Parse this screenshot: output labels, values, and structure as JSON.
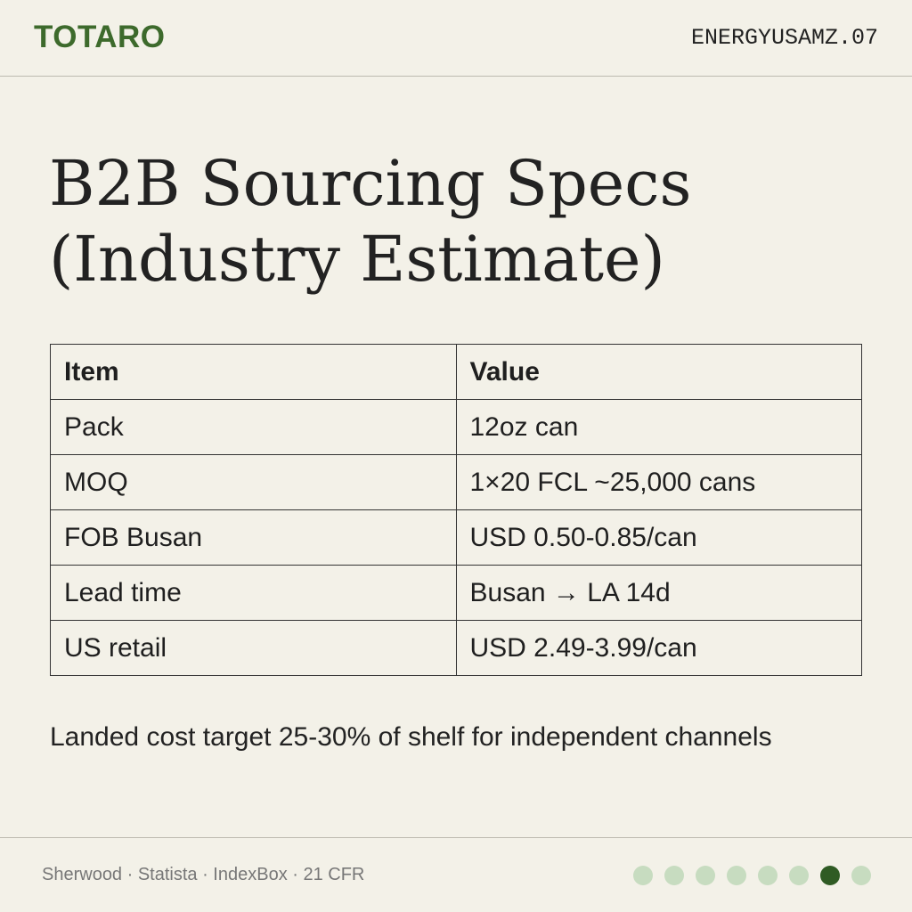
{
  "header": {
    "brand": "TOTARO",
    "code": "ENERGYUSAMZ.07"
  },
  "title_lines": [
    "B2B Sourcing Specs",
    "(Industry Estimate)"
  ],
  "table": {
    "header": [
      "Item",
      "Value"
    ],
    "rows": [
      [
        "Pack",
        "12oz can"
      ],
      [
        "MOQ",
        "1×20 FCL ~25,000 cans"
      ],
      [
        "FOB Busan",
        "USD 0.50-0.85/can"
      ],
      [
        "Lead time",
        "Busan → LA 14d"
      ],
      [
        "US retail",
        "USD 2.49-3.99/can"
      ]
    ]
  },
  "note": "Landed cost target 25-30% of shelf for independent channels",
  "footer": {
    "sources": "Sherwood · Statista · IndexBox · 21 CFR"
  }
}
